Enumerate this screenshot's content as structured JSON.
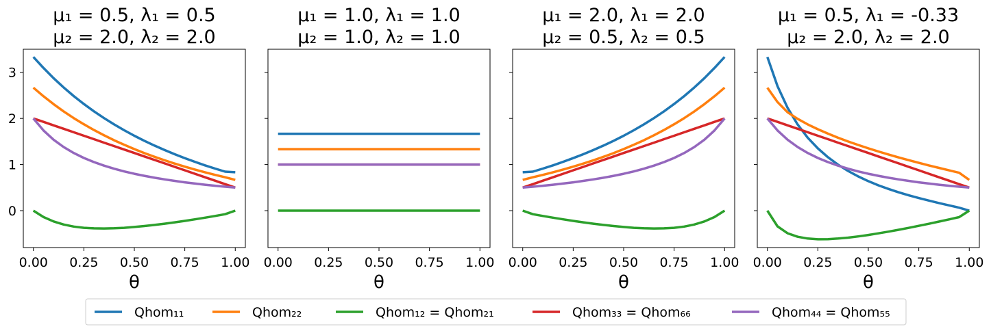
{
  "chart_data": {
    "type": "line",
    "xlabel": "θ",
    "xticks": [
      "0.00",
      "0.25",
      "0.50",
      "0.75",
      "1.00"
    ],
    "yticks": [
      "0",
      "1",
      "2",
      "3"
    ],
    "xlim": [
      -0.05,
      1.05
    ],
    "ylim": [
      -0.8,
      3.5
    ],
    "series_names": [
      "Qhom₁₁",
      "Qhom₂₂",
      "Qhom₁₂ = Qhom₂₁",
      "Qhom₃₃ = Qhom₆₆",
      "Qhom₄₄ = Qhom₅₅"
    ],
    "colors": [
      "#1f77b4",
      "#ff7f0e",
      "#2ca02c",
      "#d62728",
      "#9467bd"
    ],
    "legend": "bottom-center",
    "x": [
      0.0,
      0.05,
      0.1,
      0.15,
      0.2,
      0.25,
      0.3,
      0.35,
      0.4,
      0.45,
      0.5,
      0.55,
      0.6,
      0.65,
      0.7,
      0.75,
      0.8,
      0.85,
      0.9,
      0.95,
      1.0
    ],
    "panels": [
      {
        "title_line1": "μ₁ = 0.5, λ₁ = 0.5",
        "title_line2": "μ₂ = 2.0, λ₂ = 2.0",
        "series": [
          {
            "name": "Qhom₁₁",
            "values": [
              3.333,
              3.093,
              2.873,
              2.671,
              2.485,
              2.313,
              2.154,
              2.007,
              1.87,
              1.743,
              1.625,
              1.514,
              1.411,
              1.315,
              1.224,
              1.139,
              1.059,
              0.983,
              0.913,
              0.846,
              0.833
            ]
          },
          {
            "name": "Qhom₂₂",
            "values": [
              2.667,
              2.48,
              2.309,
              2.152,
              2.007,
              1.873,
              1.749,
              1.634,
              1.527,
              1.428,
              1.335,
              1.248,
              1.168,
              1.092,
              1.021,
              0.954,
              0.892,
              0.832,
              0.776,
              0.724,
              0.667
            ]
          },
          {
            "name": "Qhom₁₂ = Qhom₂₁",
            "values": [
              0.0,
              -0.138,
              -0.234,
              -0.3,
              -0.345,
              -0.371,
              -0.384,
              -0.387,
              -0.382,
              -0.371,
              -0.354,
              -0.333,
              -0.309,
              -0.282,
              -0.253,
              -0.221,
              -0.188,
              -0.152,
              -0.115,
              -0.077,
              0.0
            ]
          },
          {
            "name": "Qhom₃₃ = Qhom₆₆",
            "values": [
              2.0,
              1.925,
              1.85,
              1.775,
              1.7,
              1.625,
              1.55,
              1.475,
              1.4,
              1.325,
              1.25,
              1.175,
              1.1,
              1.025,
              0.95,
              0.875,
              0.8,
              0.725,
              0.65,
              0.575,
              0.5
            ]
          },
          {
            "name": "Qhom₄₄ = Qhom₅₅",
            "values": [
              2.0,
              1.739,
              1.538,
              1.379,
              1.25,
              1.143,
              1.053,
              0.976,
              0.909,
              0.851,
              0.8,
              0.755,
              0.714,
              0.678,
              0.645,
              0.615,
              0.588,
              0.563,
              0.541,
              0.519,
              0.5
            ]
          }
        ]
      },
      {
        "title_line1": "μ₁ = 1.0, λ₁ = 1.0",
        "title_line2": "μ₂ = 1.0, λ₂ = 1.0",
        "series": [
          {
            "name": "Qhom₁₁",
            "values": [
              1.667,
              1.667,
              1.667,
              1.667,
              1.667,
              1.667,
              1.667,
              1.667,
              1.667,
              1.667,
              1.667,
              1.667,
              1.667,
              1.667,
              1.667,
              1.667,
              1.667,
              1.667,
              1.667,
              1.667,
              1.667
            ]
          },
          {
            "name": "Qhom₂₂",
            "values": [
              1.333,
              1.333,
              1.333,
              1.333,
              1.333,
              1.333,
              1.333,
              1.333,
              1.333,
              1.333,
              1.333,
              1.333,
              1.333,
              1.333,
              1.333,
              1.333,
              1.333,
              1.333,
              1.333,
              1.333,
              1.333
            ]
          },
          {
            "name": "Qhom₁₂ = Qhom₂₁",
            "values": [
              0.0,
              0.0,
              0.0,
              0.0,
              0.0,
              0.0,
              0.0,
              0.0,
              0.0,
              0.0,
              0.0,
              0.0,
              0.0,
              0.0,
              0.0,
              0.0,
              0.0,
              0.0,
              0.0,
              0.0,
              0.0
            ]
          },
          {
            "name": "Qhom₃₃ = Qhom₆₆",
            "values": [
              1.0,
              1.0,
              1.0,
              1.0,
              1.0,
              1.0,
              1.0,
              1.0,
              1.0,
              1.0,
              1.0,
              1.0,
              1.0,
              1.0,
              1.0,
              1.0,
              1.0,
              1.0,
              1.0,
              1.0,
              1.0
            ]
          },
          {
            "name": "Qhom₄₄ = Qhom₅₅",
            "values": [
              1.0,
              1.0,
              1.0,
              1.0,
              1.0,
              1.0,
              1.0,
              1.0,
              1.0,
              1.0,
              1.0,
              1.0,
              1.0,
              1.0,
              1.0,
              1.0,
              1.0,
              1.0,
              1.0,
              1.0,
              1.0
            ]
          }
        ]
      },
      {
        "title_line1": "μ₁ = 2.0, λ₁ = 2.0",
        "title_line2": "μ₂ = 0.5, λ₂ = 0.5",
        "series": [
          {
            "name": "Qhom₁₁",
            "values": [
              0.833,
              0.846,
              0.913,
              0.983,
              1.059,
              1.139,
              1.224,
              1.315,
              1.411,
              1.514,
              1.625,
              1.743,
              1.87,
              2.007,
              2.154,
              2.313,
              2.485,
              2.671,
              2.873,
              3.093,
              3.333
            ]
          },
          {
            "name": "Qhom₂₂",
            "values": [
              0.667,
              0.724,
              0.776,
              0.832,
              0.892,
              0.954,
              1.021,
              1.092,
              1.168,
              1.248,
              1.335,
              1.428,
              1.527,
              1.634,
              1.749,
              1.873,
              2.007,
              2.152,
              2.309,
              2.48,
              2.667
            ]
          },
          {
            "name": "Qhom₁₂ = Qhom₂₁",
            "values": [
              0.0,
              -0.077,
              -0.115,
              -0.152,
              -0.188,
              -0.221,
              -0.253,
              -0.282,
              -0.309,
              -0.333,
              -0.354,
              -0.371,
              -0.382,
              -0.387,
              -0.384,
              -0.371,
              -0.345,
              -0.3,
              -0.234,
              -0.138,
              0.0
            ]
          },
          {
            "name": "Qhom₃₃ = Qhom₆₆",
            "values": [
              0.5,
              0.575,
              0.65,
              0.725,
              0.8,
              0.875,
              0.95,
              1.025,
              1.1,
              1.175,
              1.25,
              1.325,
              1.4,
              1.475,
              1.55,
              1.625,
              1.7,
              1.775,
              1.85,
              1.925,
              2.0
            ]
          },
          {
            "name": "Qhom₄₄ = Qhom₅₅",
            "values": [
              0.5,
              0.519,
              0.541,
              0.563,
              0.588,
              0.615,
              0.645,
              0.678,
              0.714,
              0.755,
              0.8,
              0.851,
              0.909,
              0.976,
              1.053,
              1.143,
              1.25,
              1.379,
              1.538,
              1.739,
              2.0
            ]
          }
        ]
      },
      {
        "title_line1": "μ₁ = 0.5, λ₁ = -0.33",
        "title_line2": "μ₂ = 2.0, λ₂ = 2.0",
        "series": [
          {
            "name": "Qhom₁₁",
            "values": [
              3.333,
              2.7,
              2.23,
              1.868,
              1.582,
              1.35,
              1.158,
              0.997,
              0.86,
              0.742,
              0.64,
              0.55,
              0.47,
              0.398,
              0.333,
              0.274,
              0.218,
              0.166,
              0.115,
              0.064,
              0.0
            ]
          },
          {
            "name": "Qhom₂₂",
            "values": [
              2.667,
              2.355,
              2.133,
              1.99,
              1.87,
              1.765,
              1.67,
              1.582,
              1.5,
              1.424,
              1.352,
              1.283,
              1.218,
              1.155,
              1.095,
              1.037,
              0.981,
              0.927,
              0.874,
              0.822,
              0.667
            ]
          },
          {
            "name": "Qhom₁₂ = Qhom₂₁",
            "values": [
              0.0,
              -0.34,
              -0.49,
              -0.565,
              -0.605,
              -0.62,
              -0.618,
              -0.605,
              -0.585,
              -0.558,
              -0.527,
              -0.492,
              -0.455,
              -0.415,
              -0.373,
              -0.329,
              -0.284,
              -0.237,
              -0.189,
              -0.14,
              0.0
            ]
          },
          {
            "name": "Qhom₃₃ = Qhom₆₆",
            "values": [
              2.0,
              1.925,
              1.85,
              1.775,
              1.7,
              1.625,
              1.55,
              1.475,
              1.4,
              1.325,
              1.25,
              1.175,
              1.1,
              1.025,
              0.95,
              0.875,
              0.8,
              0.725,
              0.65,
              0.575,
              0.5
            ]
          },
          {
            "name": "Qhom₄₄ = Qhom₅₅",
            "values": [
              2.0,
              1.739,
              1.538,
              1.379,
              1.25,
              1.143,
              1.053,
              0.976,
              0.909,
              0.851,
              0.8,
              0.755,
              0.714,
              0.678,
              0.645,
              0.615,
              0.588,
              0.563,
              0.541,
              0.519,
              0.5
            ]
          }
        ]
      }
    ]
  }
}
